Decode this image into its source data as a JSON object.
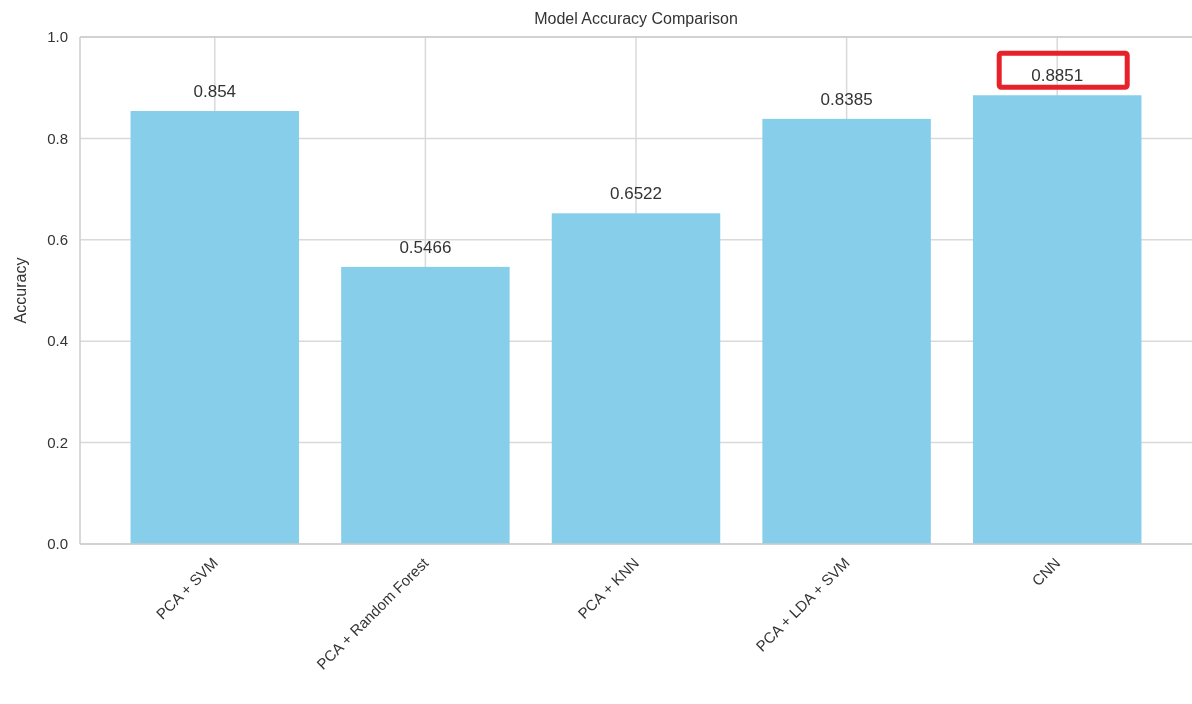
{
  "chart_data": {
    "type": "bar",
    "title": "Model Accuracy Comparison",
    "ylabel": "Accuracy",
    "categories": [
      "PCA + SVM",
      "PCA + Random Forest",
      "PCA + KNN",
      "PCA + LDA + SVM",
      "CNN"
    ],
    "values": [
      0.854,
      0.5466,
      0.6522,
      0.8385,
      0.8851
    ],
    "color": "#87ceeb",
    "ylim": [
      0,
      1
    ],
    "yticks": [
      {
        "value": 0,
        "label": "0.0"
      },
      {
        "value": 0.2,
        "label": "0.2"
      },
      {
        "value": 0.4,
        "label": "0.4"
      },
      {
        "value": 0.6,
        "label": "0.6"
      },
      {
        "value": 0.8,
        "label": "0.8"
      },
      {
        "value": 1,
        "label": "1.0"
      }
    ],
    "grid": true,
    "data_labels": true
  }
}
